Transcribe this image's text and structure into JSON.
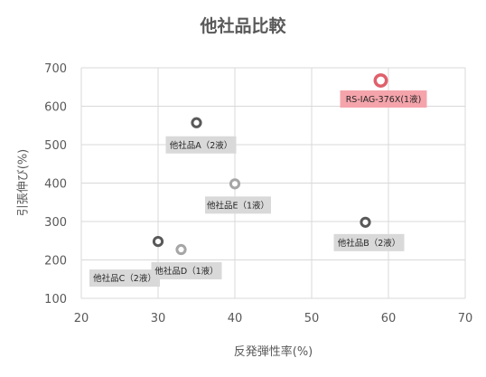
{
  "chart_data": {
    "type": "scatter",
    "title": "他社品比較",
    "xlabel": "反発弾性率(%)",
    "ylabel": "引張伸び(%)",
    "xlim": [
      20,
      70
    ],
    "ylim": [
      100,
      700
    ],
    "xticks": [
      20,
      30,
      40,
      50,
      60,
      70
    ],
    "yticks": [
      100,
      200,
      300,
      400,
      500,
      600,
      700
    ],
    "grid": true,
    "legend": "none",
    "points": [
      {
        "label": "他社品A（2液）",
        "x": 35,
        "y": 557,
        "color": "#595959",
        "label_bg": "#d9d9d9"
      },
      {
        "label": "他社品E（1液）",
        "x": 40,
        "y": 398,
        "color": "#a6a6a6",
        "label_bg": "#d9d9d9"
      },
      {
        "label": "他社品C（2液）",
        "x": 30,
        "y": 248,
        "color": "#595959",
        "label_bg": "#d9d9d9"
      },
      {
        "label": "他社品D（1液）",
        "x": 33,
        "y": 227,
        "color": "#a6a6a6",
        "label_bg": "#d9d9d9"
      },
      {
        "label": "他社品B（2液）",
        "x": 57,
        "y": 298,
        "color": "#595959",
        "label_bg": "#d9d9d9"
      },
      {
        "label": "RS-IAG-376X(1液)",
        "x": 59,
        "y": 667,
        "color": "#e0606b",
        "label_bg": "#f5a4ab"
      }
    ]
  }
}
